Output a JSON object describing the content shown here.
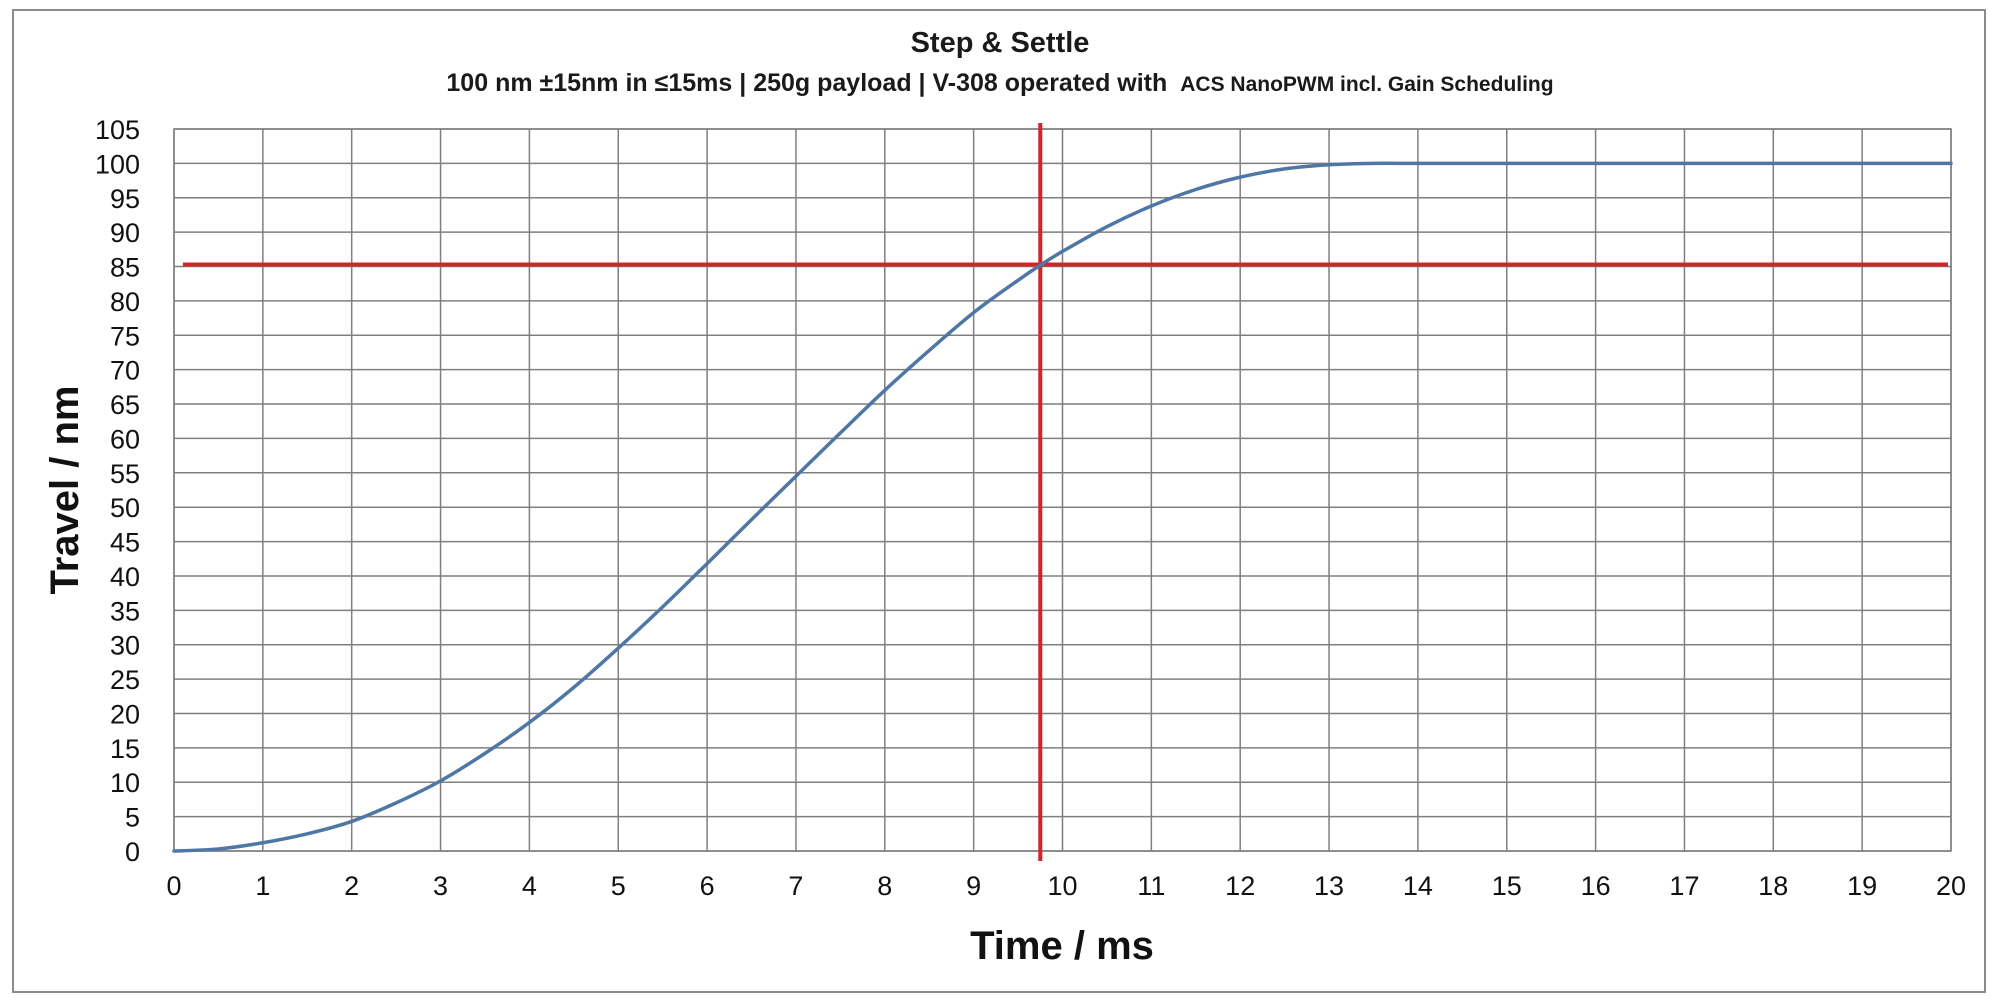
{
  "chart_data": {
    "type": "line",
    "title": "Step & Settle",
    "subtitle_main": "100 nm ±15nm in ≤15ms | 250g payload | V-308 operated with",
    "subtitle_tail": "ACS NanoPWM incl. Gain Scheduling",
    "xlabel": "Time / ms",
    "ylabel": "Travel / nm",
    "xlim": [
      0,
      20
    ],
    "ylim": [
      0,
      105
    ],
    "x_ticks": [
      "0",
      "1",
      "2",
      "3",
      "4",
      "5",
      "6",
      "7",
      "8",
      "9",
      "10",
      "11",
      "12",
      "13",
      "14",
      "15",
      "16",
      "17",
      "18",
      "19",
      "20"
    ],
    "y_ticks": [
      "0",
      "5",
      "10",
      "15",
      "20",
      "25",
      "30",
      "35",
      "40",
      "45",
      "50",
      "55",
      "60",
      "65",
      "70",
      "75",
      "80",
      "85",
      "90",
      "95",
      "100",
      "105"
    ],
    "grid": true,
    "legend": "none",
    "series": [
      {
        "color": "#4f77a5",
        "x": [
          0,
          0.5,
          1,
          1.5,
          2,
          2.5,
          3,
          3.5,
          4,
          4.5,
          5,
          5.5,
          6,
          6.5,
          7,
          7.5,
          8,
          8.5,
          9,
          9.5,
          9.75,
          10,
          10.5,
          11,
          11.5,
          12,
          12.5,
          13,
          13.5,
          14,
          15,
          16,
          17,
          18,
          19,
          20
        ],
        "y": [
          0,
          0.3,
          1.2,
          2.5,
          4.3,
          7,
          10.2,
          14.2,
          18.7,
          23.8,
          29.5,
          35.5,
          41.8,
          48.2,
          54.5,
          60.8,
          67,
          72.8,
          78.3,
          83,
          85.2,
          87.2,
          90.8,
          93.8,
          96.2,
          98,
          99.2,
          99.8,
          100,
          100,
          100,
          100,
          100,
          100,
          100,
          100
        ]
      }
    ],
    "reference_lines": [
      {
        "orientation": "horizontal",
        "value": 85.3,
        "x_range": [
          0.1,
          20
        ],
        "color": "#d0252a"
      },
      {
        "orientation": "vertical",
        "value": 9.75,
        "color": "#d0252a"
      }
    ]
  }
}
